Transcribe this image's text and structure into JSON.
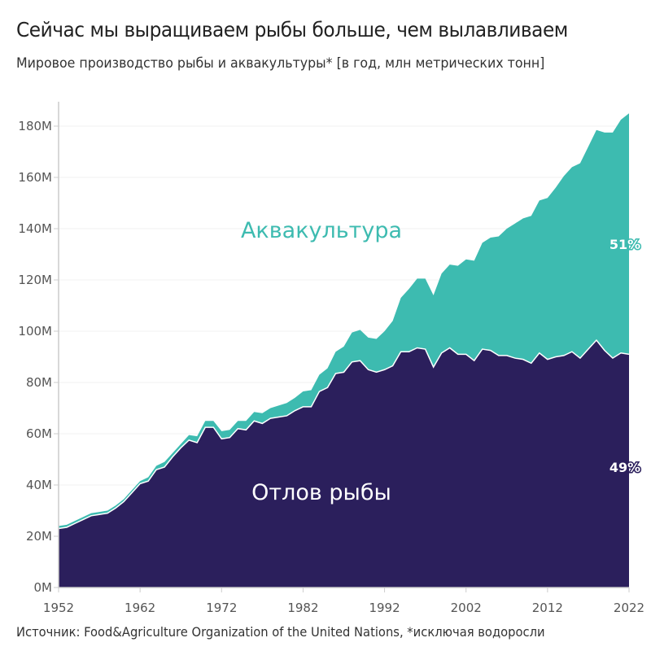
{
  "title": "Сейчас мы выращиваем рыбы больше, чем вылавливаем",
  "subtitle": "Мировое производство рыбы и аквакультуры* [в год, млн метрических тонн]",
  "source": "Источник: Food&Agriculture Organization of the United Nations, *исключая водоросли",
  "chart_data": {
    "type": "area",
    "stacked": true,
    "title": "Сейчас мы выращиваем рыбы больше, чем вылавливаем",
    "ylabel": "млн метрических тонн",
    "ylim": [
      0,
      190
    ],
    "xlim": [
      1952,
      2022
    ],
    "grid": true,
    "x_ticks": [
      1952,
      1962,
      1972,
      1982,
      1992,
      2002,
      2012,
      2022
    ],
    "y_ticks": [
      0,
      20,
      40,
      60,
      80,
      100,
      120,
      140,
      160,
      180
    ],
    "y_tick_labels": [
      "0M",
      "20M",
      "40M",
      "60M",
      "80M",
      "100M",
      "120M",
      "140M",
      "160M",
      "180M"
    ],
    "x_tick_labels": [
      "1952",
      "1962",
      "1972",
      "1982",
      "1992",
      "2002",
      "2012",
      "2022"
    ],
    "x_start": 1952,
    "series": [
      {
        "name": "Отлов рыбы",
        "color": "#2b1f5c",
        "share_label": "49%",
        "values": [
          23,
          23.5,
          25,
          26.5,
          28,
          28.5,
          29,
          31,
          33.5,
          37,
          40.5,
          41.5,
          46,
          47,
          51,
          54.5,
          57.5,
          56.5,
          62.5,
          62.5,
          58,
          58.5,
          62,
          61.5,
          65,
          64,
          66,
          66.5,
          67,
          69,
          70.5,
          70.5,
          76.5,
          78,
          83.5,
          84,
          88,
          88.5,
          85,
          84,
          85,
          86.5,
          92,
          92,
          93.5,
          93,
          86,
          91.5,
          93.5,
          91,
          91,
          88.5,
          93,
          92.5,
          90.5,
          90.5,
          89.5,
          89,
          87.5,
          91.5,
          89,
          90,
          90.5,
          92,
          89.5,
          93,
          96.5,
          92.5,
          89.5,
          91.5,
          91
        ]
      },
      {
        "name": "Аквакультура",
        "color": "#3dbbb0",
        "share_label": "51%",
        "values": [
          1,
          1,
          1,
          1,
          1,
          1,
          1,
          1,
          1,
          1,
          1,
          1.5,
          1.5,
          2,
          1.5,
          1.5,
          2,
          2.5,
          2.5,
          2.5,
          3,
          3,
          3,
          3.5,
          3.5,
          4,
          4,
          4.5,
          5,
          5,
          6,
          6.5,
          6.5,
          7.5,
          8.5,
          10,
          11.5,
          12,
          12.5,
          13,
          15,
          17.5,
          21,
          24.5,
          27,
          27.5,
          28,
          31,
          32.5,
          34.5,
          37,
          39,
          41.5,
          44,
          46.5,
          49.5,
          52.5,
          55,
          57.5,
          59.5,
          63,
          66,
          70,
          72,
          76,
          79,
          82,
          85,
          88,
          91,
          94
        ]
      }
    ]
  }
}
